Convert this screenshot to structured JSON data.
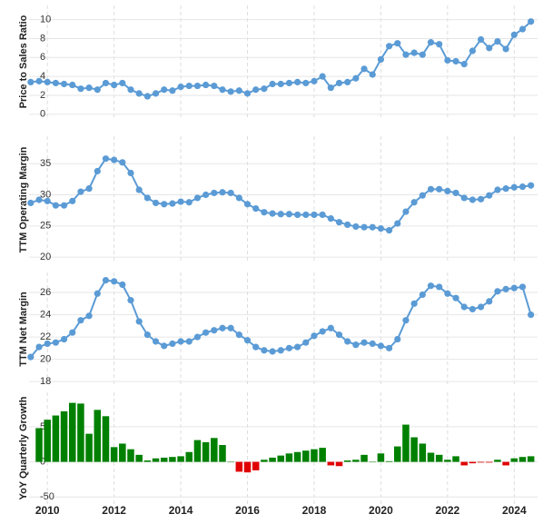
{
  "chart_data": {
    "x": [
      2009.5,
      2009.75,
      2010,
      2010.25,
      2010.5,
      2010.75,
      2011,
      2011.25,
      2011.5,
      2011.75,
      2012,
      2012.25,
      2012.5,
      2012.75,
      2013,
      2013.25,
      2013.5,
      2013.75,
      2014,
      2014.25,
      2014.5,
      2014.75,
      2015,
      2015.25,
      2015.5,
      2015.75,
      2016,
      2016.25,
      2016.5,
      2016.75,
      2017,
      2017.25,
      2017.5,
      2017.75,
      2018,
      2018.25,
      2018.5,
      2018.75,
      2019,
      2019.25,
      2019.5,
      2019.75,
      2020,
      2020.25,
      2020.5,
      2020.75,
      2021,
      2021.25,
      2021.5,
      2021.75,
      2022,
      2022.25,
      2022.5,
      2022.75,
      2023,
      2023.25,
      2023.5,
      2023.75,
      2024,
      2024.25,
      2024.5
    ],
    "xlim": [
      2009.45,
      2024.7
    ],
    "xticks": [
      2010,
      2012,
      2014,
      2016,
      2018,
      2020,
      2022,
      2024
    ],
    "grid": true,
    "panels": [
      {
        "type": "line",
        "ylabel": "Price to Sales Ratio",
        "color": "#5b9bd5",
        "ylim": [
          -0.4,
          11.5
        ],
        "yticks": [
          0,
          2,
          4,
          6,
          8,
          10
        ],
        "values": [
          3.4,
          3.5,
          3.4,
          3.3,
          3.2,
          3.1,
          2.7,
          2.8,
          2.6,
          3.3,
          3.1,
          3.3,
          2.6,
          2.2,
          1.9,
          2.2,
          2.6,
          2.5,
          2.9,
          3.0,
          3.0,
          3.1,
          3.0,
          2.6,
          2.4,
          2.5,
          2.2,
          2.6,
          2.7,
          3.2,
          3.2,
          3.3,
          3.4,
          3.3,
          3.5,
          4.0,
          2.8,
          3.3,
          3.4,
          3.8,
          4.8,
          4.2,
          5.8,
          7.2,
          7.5,
          6.3,
          6.5,
          6.3,
          7.6,
          7.4,
          5.7,
          5.6,
          5.3,
          6.7,
          7.9,
          7.0,
          7.7,
          6.9,
          8.4,
          9.0,
          9.8
        ]
      },
      {
        "type": "line",
        "ylabel": "TTM Operating Margin",
        "color": "#5b9bd5",
        "ylim": [
          19,
          39.4
        ],
        "yticks": [
          20,
          25,
          30,
          35
        ],
        "values": [
          28.7,
          29.2,
          29.0,
          28.3,
          28.3,
          29.0,
          30.5,
          31.0,
          33.8,
          35.8,
          35.6,
          35.2,
          33.5,
          30.8,
          29.5,
          28.7,
          28.5,
          28.6,
          28.9,
          28.8,
          29.5,
          30.0,
          30.3,
          30.4,
          30.3,
          29.5,
          28.5,
          27.8,
          27.2,
          27.0,
          26.9,
          26.9,
          26.8,
          26.8,
          26.8,
          26.8,
          26.2,
          25.6,
          25.2,
          24.9,
          24.8,
          24.8,
          24.6,
          24.3,
          25.4,
          27.3,
          28.8,
          29.9,
          30.9,
          30.9,
          30.6,
          30.3,
          29.5,
          29.2,
          29.3,
          29.9,
          30.8,
          31.0,
          31.2,
          31.3,
          31.5
        ]
      },
      {
        "type": "line",
        "ylabel": "TTM Net Margin",
        "color": "#5b9bd5",
        "ylim": [
          17.6,
          27.8
        ],
        "yticks": [
          18,
          20,
          22,
          24,
          26
        ],
        "values": [
          20.2,
          21.1,
          21.4,
          21.5,
          21.8,
          22.4,
          23.5,
          23.9,
          25.9,
          27.1,
          27.0,
          26.7,
          25.3,
          23.4,
          22.2,
          21.6,
          21.2,
          21.4,
          21.6,
          21.6,
          22.0,
          22.4,
          22.6,
          22.8,
          22.8,
          22.2,
          21.7,
          21.1,
          20.8,
          20.7,
          20.8,
          21.0,
          21.1,
          21.5,
          22.1,
          22.5,
          22.8,
          22.2,
          21.6,
          21.3,
          21.5,
          21.4,
          21.2,
          21.0,
          21.8,
          23.5,
          25.0,
          25.8,
          26.6,
          26.5,
          25.9,
          25.5,
          24.7,
          24.5,
          24.7,
          25.2,
          26.1,
          26.3,
          26.4,
          26.5,
          24.0
        ]
      },
      {
        "type": "bar",
        "ylabel": "YoY Quarterly Growth",
        "color": "#008000",
        "negative_color": "#e00000",
        "ylim": [
          -60,
          99
        ],
        "yticks": [
          -50,
          0,
          50
        ],
        "values": [
          null,
          48,
          60,
          66,
          72,
          84,
          83,
          40,
          74,
          65,
          21,
          26,
          18,
          10,
          2,
          5,
          6,
          7,
          8,
          14,
          31,
          28,
          34,
          24,
          0,
          -14,
          -15,
          -12,
          3,
          6,
          9,
          12,
          14,
          16,
          18,
          20,
          -5,
          -6,
          2,
          3,
          10,
          0,
          12,
          1,
          22,
          53,
          35,
          26,
          13,
          10,
          3,
          8,
          -5,
          -2,
          -1,
          -1,
          3,
          -5,
          5,
          7,
          8
        ]
      }
    ]
  }
}
